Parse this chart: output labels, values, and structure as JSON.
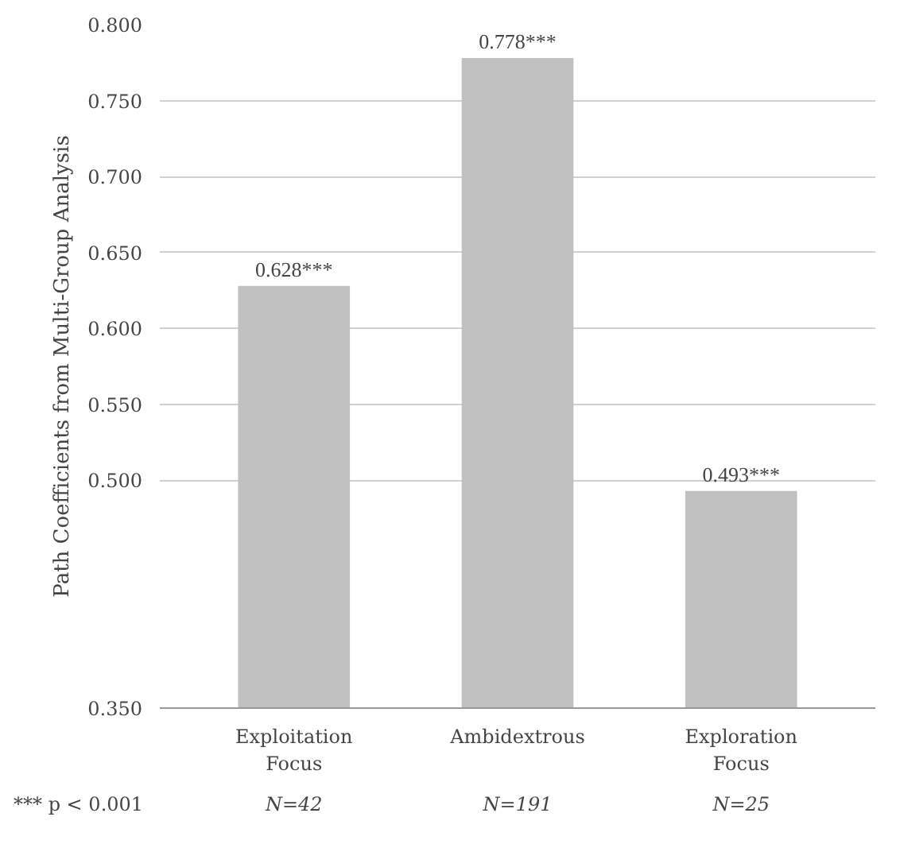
{
  "chart_data": {
    "type": "bar",
    "ylabel": "Path Coefficients from Multi-Group Analysis",
    "categories": [
      "Exploitation Focus",
      "Ambidextrous",
      "Exploration Focus"
    ],
    "values": [
      0.628,
      0.778,
      0.493
    ],
    "color": "#c0c0c0",
    "value_labels": [
      "0.628***",
      "0.778***",
      "0.493***"
    ],
    "ylim": [
      0.35,
      0.8
    ],
    "yticks": [
      {
        "value": 0.35,
        "label": "0.350"
      },
      {
        "value": 0.5,
        "label": "0.500"
      },
      {
        "value": 0.55,
        "label": "0.550"
      },
      {
        "value": 0.6,
        "label": "0.600"
      },
      {
        "value": 0.65,
        "label": "0.650"
      },
      {
        "value": 0.7,
        "label": "0.700"
      },
      {
        "value": 0.75,
        "label": "0.750"
      },
      {
        "value": 0.8,
        "label": "0.800"
      }
    ],
    "grid": "y",
    "annotations": [
      "*** p < 0.001",
      "N=42",
      "N=191",
      "N=25"
    ]
  }
}
